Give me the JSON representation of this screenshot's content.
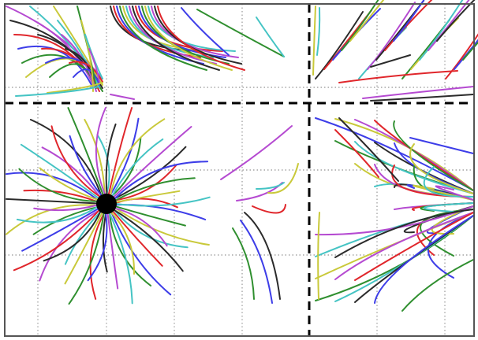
{
  "figure": {
    "type": "phase-portrait",
    "title": "",
    "xlabel": "",
    "ylabel": "",
    "grid": true,
    "grid_style": "dotted",
    "background_color": "#ffffff",
    "frame_color": "#555555",
    "separatrix_color": "#000000",
    "separatrix_style": "dashed",
    "fixed_point_color": "#000000",
    "trajectory_palette": [
      "#e0262b",
      "#3d3de8",
      "#2f8f2f",
      "#c9c93a",
      "#45c4c4",
      "#b54ad1",
      "#2b2b2b"
    ],
    "trajectory_count_approx": 160,
    "annotations": []
  }
}
